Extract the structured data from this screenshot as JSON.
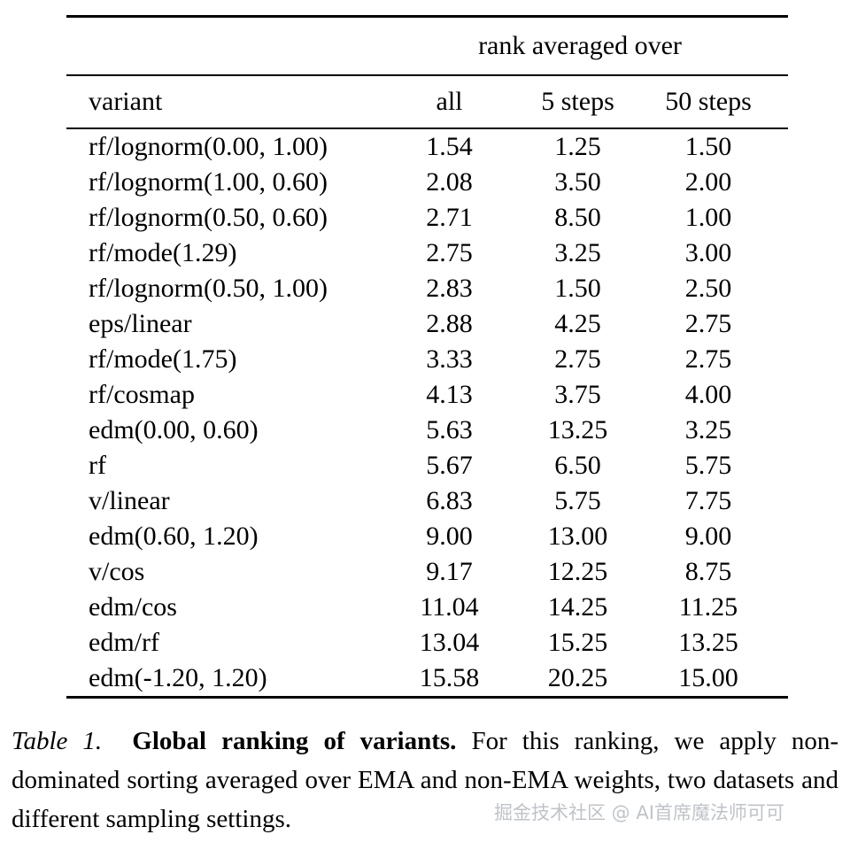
{
  "table": {
    "span_header": "rank averaged over",
    "columns": [
      "variant",
      "all",
      "5 steps",
      "50 steps"
    ],
    "rows": [
      {
        "variant": "rf/lognorm(0.00, 1.00)",
        "all": "1.54",
        "s5": "1.25",
        "s50": "1.50"
      },
      {
        "variant": "rf/lognorm(1.00, 0.60)",
        "all": "2.08",
        "s5": "3.50",
        "s50": "2.00"
      },
      {
        "variant": "rf/lognorm(0.50, 0.60)",
        "all": "2.71",
        "s5": "8.50",
        "s50": "1.00"
      },
      {
        "variant": "rf/mode(1.29)",
        "all": "2.75",
        "s5": "3.25",
        "s50": "3.00"
      },
      {
        "variant": "rf/lognorm(0.50, 1.00)",
        "all": "2.83",
        "s5": "1.50",
        "s50": "2.50"
      },
      {
        "variant": "eps/linear",
        "all": "2.88",
        "s5": "4.25",
        "s50": "2.75"
      },
      {
        "variant": "rf/mode(1.75)",
        "all": "3.33",
        "s5": "2.75",
        "s50": "2.75"
      },
      {
        "variant": "rf/cosmap",
        "all": "4.13",
        "s5": "3.75",
        "s50": "4.00"
      },
      {
        "variant": "edm(0.00, 0.60)",
        "all": "5.63",
        "s5": "13.25",
        "s50": "3.25"
      },
      {
        "variant": "rf",
        "all": "5.67",
        "s5": "6.50",
        "s50": "5.75"
      },
      {
        "variant": "v/linear",
        "all": "6.83",
        "s5": "5.75",
        "s50": "7.75"
      },
      {
        "variant": "edm(0.60, 1.20)",
        "all": "9.00",
        "s5": "13.00",
        "s50": "9.00"
      },
      {
        "variant": "v/cos",
        "all": "9.17",
        "s5": "12.25",
        "s50": "8.75"
      },
      {
        "variant": "edm/cos",
        "all": "11.04",
        "s5": "14.25",
        "s50": "11.25"
      },
      {
        "variant": "edm/rf",
        "all": "13.04",
        "s5": "15.25",
        "s50": "13.25"
      },
      {
        "variant": "edm(-1.20, 1.20)",
        "all": "15.58",
        "s5": "20.25",
        "s50": "15.00"
      }
    ]
  },
  "caption": {
    "label": "Table 1.",
    "title": "Global ranking of variants.",
    "text": "For this ranking, we apply non-dominated sorting averaged over EMA and non-EMA weights, two datasets and different sampling settings."
  },
  "watermark": "掘金技术社区 @ AI首席魔法师可可"
}
